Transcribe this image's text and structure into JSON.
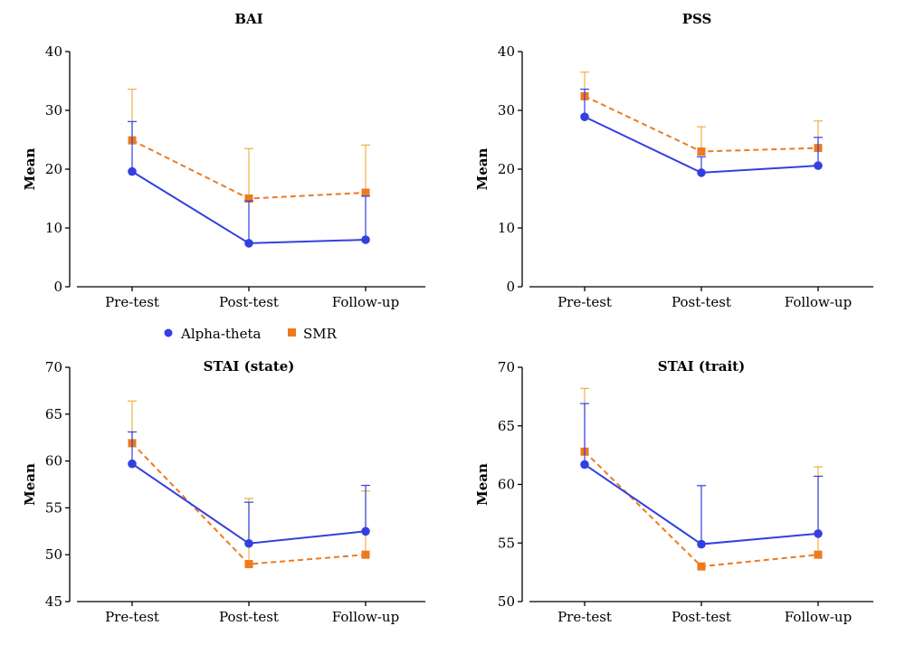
{
  "legend": {
    "items": [
      {
        "label": "Alpha-theta",
        "color": "#3340e0",
        "marker": "circle"
      },
      {
        "label": "SMR",
        "color": "#ee7a1f",
        "marker": "square"
      }
    ]
  },
  "colors": {
    "alpha_line": "#3340e0",
    "smr_line": "#ee7a1f",
    "smr_errorbar": "#f0b042",
    "axis": "#000000"
  },
  "chart_data": [
    {
      "type": "line",
      "title": "BAI",
      "ylabel": "Mean",
      "categories": [
        "Pre-test",
        "Post-test",
        "Follow-up"
      ],
      "ylim": [
        0,
        40
      ],
      "yticks": [
        "0",
        "10",
        "20",
        "30",
        "40"
      ],
      "grid": false,
      "series": [
        {
          "name": "Alpha-theta",
          "values": [
            19.6,
            7.4,
            8.0
          ],
          "error_upper": [
            28.1,
            14.6,
            15.4
          ]
        },
        {
          "name": "SMR",
          "values": [
            24.9,
            15.0,
            16.0
          ],
          "error_upper": [
            33.6,
            23.5,
            24.1
          ]
        }
      ]
    },
    {
      "type": "line",
      "title": "PSS",
      "ylabel": "Mean",
      "categories": [
        "Pre-test",
        "Post-test",
        "Follow-up"
      ],
      "ylim": [
        0,
        40
      ],
      "yticks": [
        "0",
        "10",
        "20",
        "30",
        "40"
      ],
      "grid": false,
      "series": [
        {
          "name": "Alpha-theta",
          "values": [
            28.9,
            19.4,
            20.6
          ],
          "error_upper": [
            33.6,
            22.1,
            25.4
          ]
        },
        {
          "name": "SMR",
          "values": [
            32.4,
            23.0,
            23.6
          ],
          "error_upper": [
            36.5,
            27.2,
            28.2
          ]
        }
      ]
    },
    {
      "type": "line",
      "title": "STAI (state)",
      "ylabel": "Mean",
      "categories": [
        "Pre-test",
        "Post-test",
        "Follow-up"
      ],
      "ylim": [
        45,
        70
      ],
      "yticks": [
        "45",
        "50",
        "55",
        "60",
        "65",
        "70"
      ],
      "grid": false,
      "series": [
        {
          "name": "Alpha-theta",
          "values": [
            59.7,
            51.2,
            52.5
          ],
          "error_upper": [
            63.1,
            55.6,
            57.4
          ]
        },
        {
          "name": "SMR",
          "values": [
            61.9,
            49.0,
            50.0
          ],
          "error_upper": [
            66.4,
            56.0,
            56.8
          ]
        }
      ]
    },
    {
      "type": "line",
      "title": "STAI (trait)",
      "ylabel": "Mean",
      "categories": [
        "Pre-test",
        "Post-test",
        "Follow-up"
      ],
      "ylim": [
        50,
        70
      ],
      "yticks": [
        "50",
        "55",
        "60",
        "65",
        "70"
      ],
      "grid": false,
      "series": [
        {
          "name": "Alpha-theta",
          "values": [
            61.7,
            54.9,
            55.8
          ],
          "error_upper": [
            66.9,
            59.9,
            60.7
          ]
        },
        {
          "name": "SMR",
          "values": [
            62.8,
            53.0,
            54.0
          ],
          "error_upper": [
            68.2,
            53.0,
            61.5
          ]
        }
      ]
    }
  ]
}
